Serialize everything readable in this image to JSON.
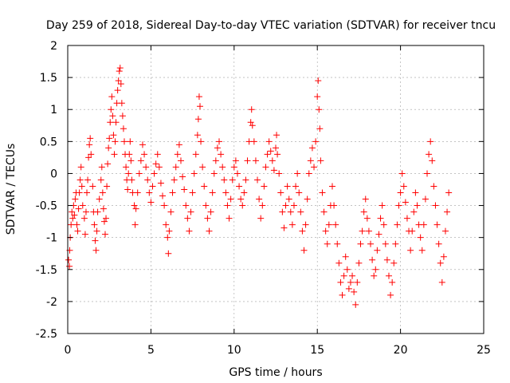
{
  "chart_data": {
    "type": "scatter",
    "title": "Day 259 of 2018, Sidereal Day-to-day VTEC variation (SDTVAR) for receiver tncu",
    "xlabel": "GPS time / hours",
    "ylabel": "SDTVAR / TECUs",
    "xlim": [
      0,
      25
    ],
    "ylim": [
      -2.5,
      2
    ],
    "xticks": [
      0,
      5,
      10,
      15,
      20,
      25
    ],
    "yticks": [
      -2.5,
      -2,
      -1.5,
      -1,
      -0.5,
      0,
      0.5,
      1,
      1.5,
      2
    ],
    "xtick_labels": [
      "0",
      "5",
      "10",
      "15",
      "20",
      "25"
    ],
    "ytick_labels": [
      "-2.5",
      "-2",
      "-1.5",
      "-1",
      "-0.5",
      "0",
      "0.5",
      "1",
      "1.5",
      "2"
    ],
    "grid": true,
    "marker": "+",
    "color": "#ff0000",
    "series": [
      {
        "name": "SDTVAR",
        "points": [
          [
            0.05,
            -1.35
          ],
          [
            0.1,
            -1.45
          ],
          [
            0.12,
            -1.2
          ],
          [
            0.15,
            -1.0
          ],
          [
            0.2,
            -0.8
          ],
          [
            0.25,
            -0.6
          ],
          [
            0.3,
            -0.7
          ],
          [
            0.35,
            -0.5
          ],
          [
            0.4,
            -0.65
          ],
          [
            0.45,
            -0.4
          ],
          [
            0.5,
            -0.3
          ],
          [
            0.55,
            -0.8
          ],
          [
            0.6,
            -0.9
          ],
          [
            0.65,
            -0.55
          ],
          [
            0.7,
            -0.3
          ],
          [
            0.75,
            -0.1
          ],
          [
            0.8,
            0.1
          ],
          [
            0.85,
            -0.2
          ],
          [
            0.9,
            -0.5
          ],
          [
            1.0,
            -0.7
          ],
          [
            1.05,
            -0.95
          ],
          [
            1.1,
            -0.6
          ],
          [
            1.15,
            -0.3
          ],
          [
            1.2,
            -0.1
          ],
          [
            1.25,
            0.25
          ],
          [
            1.3,
            0.45
          ],
          [
            1.35,
            0.55
          ],
          [
            1.4,
            0.3
          ],
          [
            1.5,
            -0.2
          ],
          [
            1.55,
            -0.6
          ],
          [
            1.6,
            -0.8
          ],
          [
            1.65,
            -1.05
          ],
          [
            1.7,
            -1.2
          ],
          [
            1.75,
            -0.9
          ],
          [
            1.8,
            -0.6
          ],
          [
            1.9,
            -0.4
          ],
          [
            2.0,
            -0.1
          ],
          [
            2.05,
            0.1
          ],
          [
            2.1,
            -0.3
          ],
          [
            2.15,
            -0.55
          ],
          [
            2.2,
            -0.75
          ],
          [
            2.25,
            -0.95
          ],
          [
            2.3,
            -0.7
          ],
          [
            2.35,
            -0.2
          ],
          [
            2.4,
            0.15
          ],
          [
            2.45,
            0.4
          ],
          [
            2.5,
            0.55
          ],
          [
            2.55,
            0.8
          ],
          [
            2.6,
            1.0
          ],
          [
            2.65,
            1.2
          ],
          [
            2.7,
            0.9
          ],
          [
            2.75,
            0.6
          ],
          [
            2.8,
            0.3
          ],
          [
            2.85,
            0.5
          ],
          [
            2.9,
            0.8
          ],
          [
            2.95,
            1.1
          ],
          [
            3.0,
            1.3
          ],
          [
            3.05,
            1.45
          ],
          [
            3.1,
            1.6
          ],
          [
            3.15,
            1.65
          ],
          [
            3.2,
            1.4
          ],
          [
            3.25,
            1.1
          ],
          [
            3.3,
            0.9
          ],
          [
            3.35,
            0.7
          ],
          [
            3.4,
            0.5
          ],
          [
            3.45,
            0.3
          ],
          [
            3.5,
            0.1
          ],
          [
            3.55,
            -0.1
          ],
          [
            3.6,
            -0.25
          ],
          [
            3.65,
            0.0
          ],
          [
            3.7,
            0.3
          ],
          [
            3.75,
            0.5
          ],
          [
            3.8,
            0.2
          ],
          [
            3.85,
            -0.1
          ],
          [
            3.9,
            -0.3
          ],
          [
            4.0,
            -0.5
          ],
          [
            4.05,
            -0.8
          ],
          [
            4.1,
            -0.55
          ],
          [
            4.2,
            -0.3
          ],
          [
            4.3,
            0.0
          ],
          [
            4.4,
            0.2
          ],
          [
            4.5,
            0.45
          ],
          [
            4.6,
            0.3
          ],
          [
            4.7,
            0.1
          ],
          [
            4.8,
            -0.1
          ],
          [
            4.9,
            -0.3
          ],
          [
            5.0,
            -0.45
          ],
          [
            5.1,
            -0.2
          ],
          [
            5.2,
            0.0
          ],
          [
            5.3,
            0.15
          ],
          [
            5.4,
            0.3
          ],
          [
            5.5,
            0.1
          ],
          [
            5.6,
            -0.15
          ],
          [
            5.7,
            -0.35
          ],
          [
            5.8,
            -0.5
          ],
          [
            5.9,
            -0.8
          ],
          [
            6.0,
            -1.0
          ],
          [
            6.05,
            -1.25
          ],
          [
            6.1,
            -0.9
          ],
          [
            6.2,
            -0.6
          ],
          [
            6.3,
            -0.3
          ],
          [
            6.4,
            -0.1
          ],
          [
            6.5,
            0.1
          ],
          [
            6.6,
            0.3
          ],
          [
            6.7,
            0.45
          ],
          [
            6.8,
            0.2
          ],
          [
            6.9,
            -0.05
          ],
          [
            7.0,
            -0.25
          ],
          [
            7.1,
            -0.5
          ],
          [
            7.2,
            -0.7
          ],
          [
            7.3,
            -0.9
          ],
          [
            7.4,
            -0.6
          ],
          [
            7.5,
            -0.3
          ],
          [
            7.6,
            0.0
          ],
          [
            7.7,
            0.3
          ],
          [
            7.8,
            0.6
          ],
          [
            7.85,
            0.85
          ],
          [
            7.9,
            1.2
          ],
          [
            7.95,
            1.05
          ],
          [
            8.0,
            0.5
          ],
          [
            8.1,
            0.1
          ],
          [
            8.2,
            -0.2
          ],
          [
            8.3,
            -0.5
          ],
          [
            8.4,
            -0.7
          ],
          [
            8.5,
            -0.9
          ],
          [
            8.6,
            -0.6
          ],
          [
            8.7,
            -0.3
          ],
          [
            8.8,
            0.0
          ],
          [
            8.9,
            0.2
          ],
          [
            9.0,
            0.4
          ],
          [
            9.1,
            0.5
          ],
          [
            9.2,
            0.3
          ],
          [
            9.3,
            0.1
          ],
          [
            9.4,
            -0.1
          ],
          [
            9.5,
            -0.3
          ],
          [
            9.6,
            -0.5
          ],
          [
            9.7,
            -0.7
          ],
          [
            9.8,
            -0.4
          ],
          [
            9.9,
            -0.1
          ],
          [
            10.0,
            0.1
          ],
          [
            10.1,
            0.2
          ],
          [
            10.2,
            0.0
          ],
          [
            10.3,
            -0.2
          ],
          [
            10.4,
            -0.4
          ],
          [
            10.5,
            -0.5
          ],
          [
            10.6,
            -0.3
          ],
          [
            10.7,
            -0.1
          ],
          [
            10.8,
            0.2
          ],
          [
            10.9,
            0.5
          ],
          [
            11.0,
            0.8
          ],
          [
            11.05,
            1.0
          ],
          [
            11.1,
            0.75
          ],
          [
            11.2,
            0.5
          ],
          [
            11.3,
            0.2
          ],
          [
            11.4,
            -0.1
          ],
          [
            11.5,
            -0.4
          ],
          [
            11.6,
            -0.7
          ],
          [
            11.7,
            -0.5
          ],
          [
            11.8,
            -0.2
          ],
          [
            11.9,
            0.1
          ],
          [
            12.0,
            0.3
          ],
          [
            12.1,
            0.5
          ],
          [
            12.2,
            0.35
          ],
          [
            12.3,
            0.2
          ],
          [
            12.4,
            0.05
          ],
          [
            12.5,
            0.4
          ],
          [
            12.55,
            0.6
          ],
          [
            12.6,
            0.3
          ],
          [
            12.7,
            0.0
          ],
          [
            12.8,
            -0.3
          ],
          [
            12.9,
            -0.6
          ],
          [
            13.0,
            -0.85
          ],
          [
            13.1,
            -0.5
          ],
          [
            13.2,
            -0.2
          ],
          [
            13.3,
            -0.4
          ],
          [
            13.4,
            -0.6
          ],
          [
            13.5,
            -0.8
          ],
          [
            13.6,
            -0.5
          ],
          [
            13.7,
            -0.2
          ],
          [
            13.8,
            0.0
          ],
          [
            13.9,
            -0.3
          ],
          [
            14.0,
            -0.6
          ],
          [
            14.1,
            -0.9
          ],
          [
            14.2,
            -1.2
          ],
          [
            14.3,
            -0.8
          ],
          [
            14.4,
            -0.4
          ],
          [
            14.5,
            0.0
          ],
          [
            14.6,
            0.2
          ],
          [
            14.7,
            0.4
          ],
          [
            14.8,
            0.1
          ],
          [
            14.9,
            0.5
          ],
          [
            15.0,
            1.2
          ],
          [
            15.05,
            1.45
          ],
          [
            15.1,
            1.0
          ],
          [
            15.15,
            0.7
          ],
          [
            15.2,
            0.2
          ],
          [
            15.3,
            -0.3
          ],
          [
            15.4,
            -0.6
          ],
          [
            15.5,
            -0.9
          ],
          [
            15.6,
            -1.1
          ],
          [
            15.7,
            -0.8
          ],
          [
            15.8,
            -0.5
          ],
          [
            15.9,
            -0.2
          ],
          [
            16.0,
            -0.5
          ],
          [
            16.1,
            -0.8
          ],
          [
            16.2,
            -1.1
          ],
          [
            16.3,
            -1.4
          ],
          [
            16.4,
            -1.7
          ],
          [
            16.5,
            -1.9
          ],
          [
            16.6,
            -1.6
          ],
          [
            16.7,
            -1.3
          ],
          [
            16.8,
            -1.5
          ],
          [
            16.9,
            -1.8
          ],
          [
            17.0,
            -1.7
          ],
          [
            17.1,
            -1.6
          ],
          [
            17.2,
            -1.85
          ],
          [
            17.3,
            -2.05
          ],
          [
            17.4,
            -1.7
          ],
          [
            17.5,
            -1.4
          ],
          [
            17.6,
            -1.1
          ],
          [
            17.7,
            -0.9
          ],
          [
            17.8,
            -0.6
          ],
          [
            17.9,
            -0.4
          ],
          [
            18.0,
            -0.7
          ],
          [
            18.1,
            -0.9
          ],
          [
            18.2,
            -1.1
          ],
          [
            18.3,
            -1.35
          ],
          [
            18.4,
            -1.6
          ],
          [
            18.5,
            -1.5
          ],
          [
            18.6,
            -1.2
          ],
          [
            18.7,
            -0.95
          ],
          [
            18.8,
            -0.7
          ],
          [
            18.9,
            -0.5
          ],
          [
            19.0,
            -0.8
          ],
          [
            19.1,
            -1.1
          ],
          [
            19.2,
            -1.35
          ],
          [
            19.3,
            -1.6
          ],
          [
            19.4,
            -1.9
          ],
          [
            19.5,
            -1.7
          ],
          [
            19.6,
            -1.4
          ],
          [
            19.7,
            -1.1
          ],
          [
            19.8,
            -0.8
          ],
          [
            19.9,
            -0.5
          ],
          [
            20.0,
            -0.3
          ],
          [
            20.1,
            0.0
          ],
          [
            20.2,
            -0.2
          ],
          [
            20.3,
            -0.45
          ],
          [
            20.4,
            -0.7
          ],
          [
            20.5,
            -0.9
          ],
          [
            20.6,
            -1.2
          ],
          [
            20.7,
            -0.9
          ],
          [
            20.8,
            -0.6
          ],
          [
            20.9,
            -0.3
          ],
          [
            21.0,
            -0.5
          ],
          [
            21.1,
            -0.8
          ],
          [
            21.2,
            -1.0
          ],
          [
            21.3,
            -1.2
          ],
          [
            21.4,
            -0.8
          ],
          [
            21.5,
            -0.4
          ],
          [
            21.6,
            0.0
          ],
          [
            21.7,
            0.3
          ],
          [
            21.8,
            0.5
          ],
          [
            21.9,
            0.2
          ],
          [
            22.0,
            -0.2
          ],
          [
            22.1,
            -0.5
          ],
          [
            22.2,
            -0.8
          ],
          [
            22.3,
            -1.1
          ],
          [
            22.4,
            -1.4
          ],
          [
            22.5,
            -1.7
          ],
          [
            22.6,
            -1.3
          ],
          [
            22.7,
            -0.9
          ],
          [
            22.8,
            -0.6
          ],
          [
            22.9,
            -0.3
          ]
        ]
      }
    ]
  }
}
